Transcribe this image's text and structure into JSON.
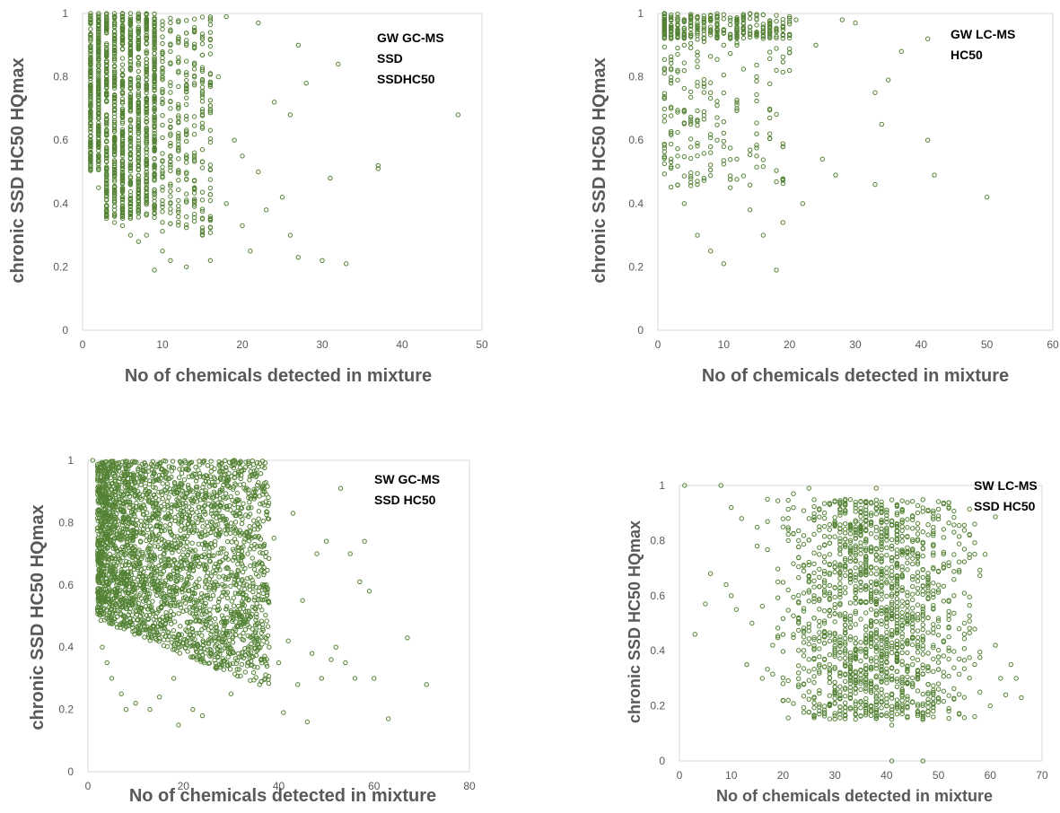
{
  "colors": {
    "marker": "#548235",
    "axis": "#d9d9d9",
    "text": "#595959"
  },
  "chart_data": [
    {
      "type": "scatter",
      "annotations": [
        "GW GC-MS",
        "SSD",
        "SSDHC50"
      ],
      "xlabel": "No of chemicals detected in mixture",
      "ylabel": "chronic SSD HC50 HQmax",
      "xlim": [
        0,
        50
      ],
      "ylim": [
        0,
        1
      ],
      "xticks": [
        "0",
        "10",
        "20",
        "30",
        "40",
        "50"
      ],
      "yticks": [
        "0",
        "0.2",
        "0.4",
        "0.6",
        "0.8",
        "1"
      ],
      "grid": false,
      "x": [
        1,
        1,
        2,
        2,
        2,
        2,
        3,
        3,
        3,
        3,
        3,
        4,
        4,
        4,
        4,
        5,
        5,
        5,
        5,
        6,
        6,
        6,
        6,
        7,
        7,
        7,
        8,
        8,
        8,
        9,
        9,
        9,
        10,
        10,
        10,
        11,
        11,
        12,
        12,
        13,
        13,
        14,
        15,
        16,
        17,
        18,
        18,
        19,
        20,
        20,
        21,
        22,
        22,
        23,
        24,
        25,
        26,
        26,
        27,
        27,
        28,
        30,
        31,
        32,
        33,
        37,
        37,
        47
      ],
      "y": [
        1.0,
        0.52,
        1.0,
        0.45,
        0.7,
        0.9,
        1.0,
        0.38,
        0.55,
        0.8,
        0.95,
        1.0,
        0.34,
        0.6,
        0.85,
        1.0,
        0.33,
        0.5,
        0.75,
        1.0,
        0.3,
        0.62,
        0.88,
        1.0,
        0.28,
        0.7,
        0.98,
        0.3,
        0.55,
        0.96,
        0.19,
        0.6,
        0.95,
        0.25,
        0.72,
        0.9,
        0.22,
        0.5,
        0.85,
        0.2,
        0.62,
        0.45,
        0.3,
        0.22,
        0.8,
        0.99,
        0.4,
        0.6,
        0.55,
        0.33,
        0.25,
        0.97,
        0.5,
        0.38,
        0.72,
        0.42,
        0.68,
        0.3,
        0.9,
        0.23,
        0.78,
        0.22,
        0.48,
        0.84,
        0.21,
        0.52,
        0.51,
        0.68
      ]
    },
    {
      "type": "scatter",
      "annotations": [
        "GW LC-MS",
        "HC50"
      ],
      "xlabel": "No of chemicals detected in mixture",
      "ylabel": "chronic SSD HC50 HQmax",
      "xlim": [
        0,
        60
      ],
      "ylim": [
        0,
        1
      ],
      "xticks": [
        "0",
        "10",
        "20",
        "30",
        "40",
        "50",
        "60"
      ],
      "yticks": [
        "0",
        "0.2",
        "0.4",
        "0.6",
        "0.8",
        "1"
      ],
      "grid": false,
      "x": [
        1,
        1,
        2,
        2,
        3,
        3,
        4,
        4,
        5,
        5,
        6,
        6,
        7,
        7,
        8,
        8,
        9,
        9,
        10,
        10,
        11,
        12,
        13,
        14,
        15,
        16,
        17,
        18,
        18,
        19,
        20,
        21,
        22,
        24,
        25,
        27,
        28,
        30,
        33,
        33,
        34,
        35,
        37,
        41,
        41,
        42,
        50
      ],
      "y": [
        1.0,
        0.99,
        0.7,
        0.98,
        0.55,
        0.95,
        0.4,
        0.9,
        0.65,
        0.98,
        0.3,
        0.85,
        0.48,
        0.97,
        0.25,
        0.75,
        0.6,
        0.99,
        0.21,
        0.9,
        0.45,
        0.7,
        0.98,
        0.38,
        0.55,
        0.3,
        0.62,
        0.19,
        0.95,
        0.34,
        0.82,
        0.98,
        0.4,
        0.9,
        0.54,
        0.49,
        0.98,
        0.97,
        0.46,
        0.75,
        0.65,
        0.79,
        0.88,
        0.92,
        0.6,
        0.49,
        0.42
      ]
    },
    {
      "type": "scatter",
      "annotations": [
        "SW GC-MS",
        "SSD HC50"
      ],
      "xlabel": "No of chemicals detected in mixture",
      "ylabel": "chronic SSD HC50 HQmax",
      "xlim": [
        0,
        80
      ],
      "ylim": [
        0,
        1
      ],
      "xticks": [
        "0",
        "20",
        "40",
        "60",
        "80"
      ],
      "yticks": [
        "0",
        "0.2",
        "0.4",
        "0.6",
        "0.8",
        "1"
      ],
      "grid": false,
      "x": [
        1,
        2,
        2,
        3,
        3,
        4,
        5,
        5,
        6,
        7,
        8,
        8,
        9,
        10,
        11,
        12,
        13,
        14,
        15,
        16,
        17,
        18,
        19,
        20,
        21,
        22,
        23,
        24,
        25,
        26,
        27,
        28,
        29,
        30,
        31,
        32,
        33,
        34,
        35,
        36,
        37,
        38,
        39,
        40,
        41,
        42,
        43,
        44,
        45,
        46,
        47,
        48,
        49,
        50,
        51,
        52,
        53,
        54,
        55,
        56,
        57,
        58,
        59,
        60,
        63,
        67,
        71
      ],
      "y": [
        1.0,
        0.52,
        0.98,
        0.4,
        0.9,
        0.35,
        0.3,
        0.85,
        0.6,
        0.25,
        0.2,
        0.95,
        0.7,
        0.22,
        0.5,
        0.9,
        0.2,
        0.45,
        0.24,
        0.7,
        0.98,
        0.3,
        0.15,
        0.55,
        0.92,
        0.2,
        0.8,
        0.18,
        0.95,
        0.45,
        0.85,
        0.35,
        0.7,
        0.25,
        0.6,
        0.82,
        0.32,
        0.5,
        0.73,
        0.28,
        0.6,
        0.4,
        0.75,
        0.35,
        0.19,
        0.42,
        0.83,
        0.28,
        0.55,
        0.16,
        0.38,
        0.7,
        0.3,
        0.74,
        0.36,
        0.4,
        0.91,
        0.35,
        0.7,
        0.3,
        0.61,
        0.74,
        0.58,
        0.3,
        0.17,
        0.43,
        0.28
      ]
    },
    {
      "type": "scatter",
      "annotations": [
        "SW LC-MS",
        "SSD HC50"
      ],
      "xlabel": "No of chemicals detected in mixture",
      "ylabel": "chronic SSD HC50 HQmax",
      "xlim": [
        0,
        70
      ],
      "ylim": [
        0,
        1
      ],
      "xticks": [
        "0",
        "10",
        "20",
        "30",
        "40",
        "50",
        "60",
        "70"
      ],
      "yticks": [
        "0",
        "0.2",
        "0.4",
        "0.6",
        "0.8",
        "1"
      ],
      "grid": false,
      "x": [
        1,
        3,
        5,
        6,
        8,
        9,
        10,
        10,
        11,
        12,
        13,
        14,
        15,
        16,
        17,
        18,
        19,
        20,
        21,
        22,
        23,
        24,
        25,
        26,
        27,
        28,
        29,
        30,
        31,
        32,
        33,
        34,
        35,
        36,
        37,
        38,
        39,
        40,
        41,
        41,
        42,
        43,
        44,
        45,
        46,
        47,
        47,
        48,
        49,
        50,
        51,
        52,
        53,
        54,
        55,
        56,
        57,
        58,
        59,
        60,
        61,
        62,
        63,
        64,
        65,
        66
      ],
      "y": [
        1.0,
        0.46,
        0.57,
        0.68,
        1.0,
        0.64,
        0.6,
        0.92,
        0.55,
        0.88,
        0.35,
        0.5,
        0.78,
        0.3,
        0.95,
        0.42,
        0.65,
        0.22,
        0.8,
        0.97,
        0.5,
        0.28,
        0.99,
        0.6,
        0.35,
        0.9,
        0.2,
        0.72,
        0.45,
        0.95,
        0.3,
        0.62,
        0.85,
        0.18,
        0.55,
        0.99,
        0.4,
        0.7,
        0.13,
        0.0,
        0.9,
        0.25,
        0.6,
        0.35,
        0.8,
        0.15,
        0.0,
        0.52,
        0.9,
        0.28,
        0.7,
        0.4,
        0.6,
        0.17,
        0.5,
        0.82,
        0.35,
        0.25,
        0.75,
        0.2,
        0.42,
        0.3,
        0.24,
        0.35,
        0.3,
        0.23
      ]
    }
  ]
}
